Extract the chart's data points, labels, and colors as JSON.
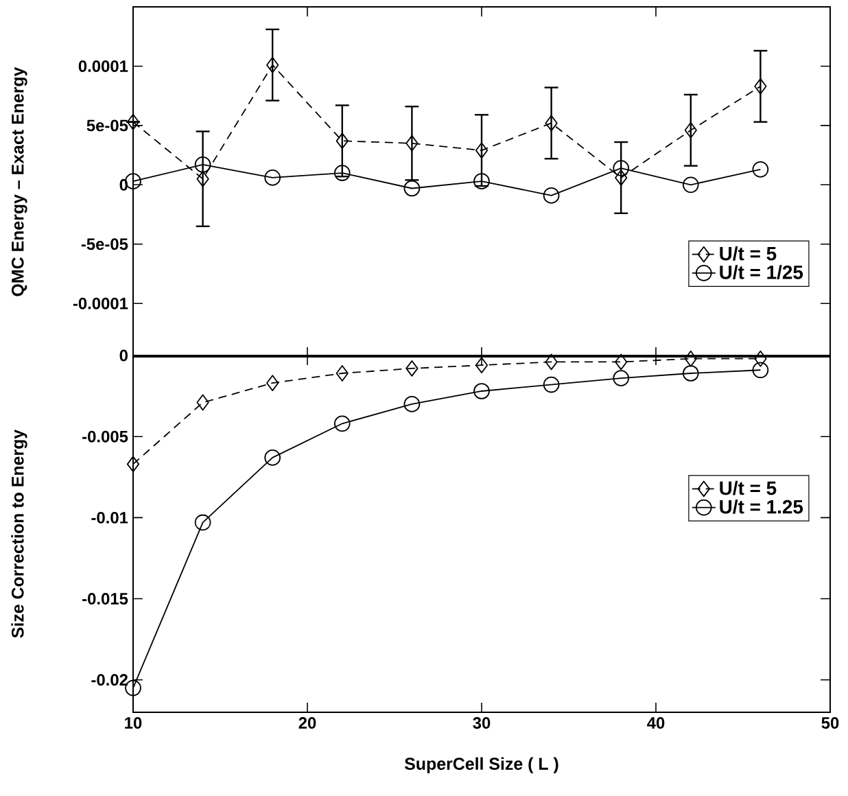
{
  "chart_data": [
    {
      "type": "line",
      "ylabel": "QMC Energy – Exact Energy",
      "x": [
        10,
        14,
        18,
        22,
        26,
        30,
        34,
        38,
        42,
        46
      ],
      "xlim": [
        10,
        50
      ],
      "xticks": [
        10,
        20,
        30,
        40,
        50
      ],
      "ylim": [
        -0.000145,
        0.00015
      ],
      "yticks": [
        {
          "value": -0.0001,
          "label": "-0.0001"
        },
        {
          "value": -5e-05,
          "label": "-5e-05"
        },
        0,
        {
          "value": 5e-05,
          "label": "5e-05"
        },
        {
          "value": 0.0001,
          "label": "0.0001"
        }
      ],
      "tick_labels": "y",
      "legend": "bottom right",
      "series": [
        {
          "name": "U/t = 5",
          "color": "#000000",
          "marker": "diamond",
          "line_style": "dashed",
          "values": [
            5.3e-05,
            5e-06,
            0.000101,
            3.7e-05,
            3.5e-05,
            2.9e-05,
            5.2e-05,
            6e-06,
            4.6e-05,
            8.3e-05
          ],
          "errors": [
            null,
            4e-05,
            3e-05,
            3e-05,
            3.1e-05,
            3e-05,
            3e-05,
            3e-05,
            3e-05,
            3e-05
          ]
        },
        {
          "name": "U/t = 1/25",
          "color": "#000000",
          "marker": "circle",
          "line_style": "solid",
          "values": [
            3e-06,
            1.7e-05,
            6e-06,
            1e-05,
            -3e-06,
            3e-06,
            -9e-06,
            1.4e-05,
            0.0,
            1.3e-05
          ]
        }
      ]
    },
    {
      "type": "line",
      "xlabel": "SuperCell Size ( L )",
      "ylabel": "Size Correction to Energy",
      "x": [
        10,
        14,
        18,
        22,
        26,
        30,
        34,
        38,
        42,
        46
      ],
      "xlim": [
        10,
        50
      ],
      "xticks": [
        10,
        20,
        30,
        40,
        50
      ],
      "ylim": [
        -0.022,
        0
      ],
      "yticks": [
        -0.02,
        -0.015,
        -0.01,
        -0.005,
        0
      ],
      "legend": "right",
      "series": [
        {
          "name": "U/t = 5",
          "color": "#000000",
          "marker": "diamond",
          "line_style": "dashed",
          "values": [
            -0.0067,
            -0.0029,
            -0.0017,
            -0.0011,
            -0.0008,
            -0.0006,
            -0.0004,
            -0.0004,
            -0.0002,
            -0.0002
          ]
        },
        {
          "name": "U/t = 1.25",
          "color": "#000000",
          "marker": "circle",
          "line_style": "solid",
          "values": [
            -0.0205,
            -0.0103,
            -0.0063,
            -0.0042,
            -0.003,
            -0.0022,
            -0.0018,
            -0.0014,
            -0.0011,
            -0.0009
          ]
        }
      ]
    }
  ]
}
